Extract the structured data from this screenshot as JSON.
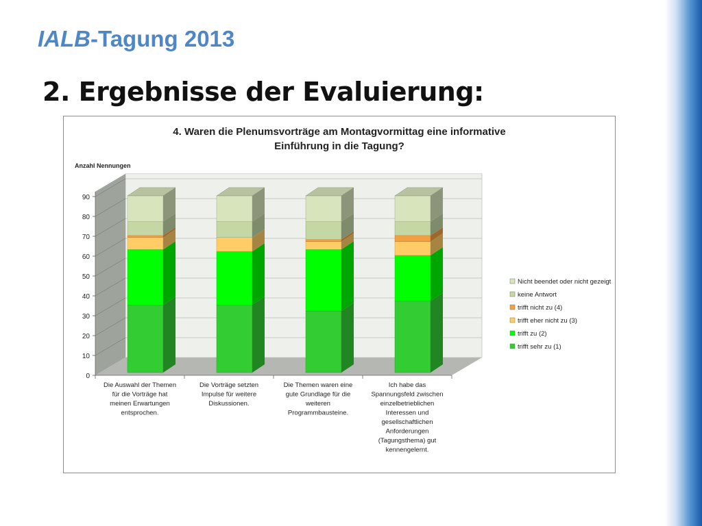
{
  "header": {
    "brand": "IALB",
    "rest": "-Tagung 2013"
  },
  "slide_title": "2. Ergebnisse der Evaluierung:",
  "chart_data": {
    "type": "bar",
    "stacked": true,
    "three_d": true,
    "title_lines": [
      "4. Waren die Plenumsvorträge am Montagvormittag eine informative",
      "Einführung in die Tagung?"
    ],
    "ylabel": "Anzahl Nennungen",
    "xlabel": "",
    "ylim": [
      0,
      90
    ],
    "yticks": [
      0,
      10,
      20,
      30,
      40,
      50,
      60,
      70,
      80,
      90
    ],
    "grid": true,
    "legend_position": "right",
    "categories": [
      [
        "Die Auswahl der Themen",
        "für die Vorträge hat",
        "meinen Erwartungen",
        "entsprochen."
      ],
      [
        "Die Vorträge setzten",
        "Impulse für weitere",
        "Diskussionen."
      ],
      [
        "Die Themen waren eine",
        "gute Grundlage für die",
        "weiteren",
        "Programmbausteine."
      ],
      [
        "Ich habe das",
        "Spannungsfeld zwischen",
        "einzelbetrieblichen",
        "Interessen und",
        "gesellschaftlichen",
        "Anforderungen",
        "(Tagungsthema) gut",
        "kennengelernt."
      ]
    ],
    "series": [
      {
        "name": "trifft sehr zu (1)",
        "color": "#33cc33",
        "values": [
          34,
          34,
          31,
          36
        ]
      },
      {
        "name": "trifft zu (2)",
        "color": "#00ff00",
        "values": [
          28,
          27,
          31,
          23
        ]
      },
      {
        "name": "trifft eher nicht zu (3)",
        "color": "#ffcc66",
        "values": [
          6,
          7,
          4,
          7
        ]
      },
      {
        "name": "trifft nicht zu (4)",
        "color": "#f4a040",
        "values": [
          1,
          0,
          1,
          3
        ]
      },
      {
        "name": "keine Antwort",
        "color": "#c4d7a4",
        "values": [
          7,
          8,
          9,
          7
        ]
      },
      {
        "name": "Nicht beendet oder nicht gezeigt",
        "color": "#d8e4bc",
        "values": [
          13,
          13,
          13,
          13
        ]
      }
    ]
  }
}
